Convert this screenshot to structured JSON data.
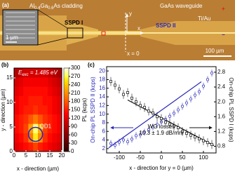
{
  "micrograph": {
    "panel_label": "(a)",
    "cladding": {
      "parts": [
        "Al",
        "0.4",
        "Ga",
        "0.6",
        "As cladding"
      ]
    },
    "waveguide": "GaAs waveguide",
    "sspd1": "SSPD I",
    "sspd2": "SSPD II",
    "metal": "Ti/Au",
    "plus": "+",
    "minus": "−",
    "inset_scale": "1 µm",
    "scale": "100 µm",
    "origin": "x = 0",
    "x_axis": "x",
    "y_axis": "y"
  },
  "chart_data": [
    {
      "type": "heatmap",
      "panel_label": "(b)",
      "annotation": {
        "parts": [
          "E",
          "exc",
          " = 1.485 eV"
        ]
      },
      "marker_label": "QD1",
      "marker_xy": [
        9,
        3.5
      ],
      "xlabel": "x - direction (µm)",
      "ylabel": "y - direction (µm)",
      "xlim": [
        0,
        20
      ],
      "ylim": [
        0,
        17
      ],
      "xticks": [
        0,
        5,
        10,
        15,
        20
      ],
      "yticks": [
        0,
        5,
        10,
        15
      ],
      "cmap": "hot",
      "z": [
        [
          120,
          130,
          140,
          150,
          170,
          150,
          140,
          130,
          120,
          110
        ],
        [
          130,
          140,
          160,
          200,
          260,
          210,
          160,
          140,
          130,
          120
        ],
        [
          140,
          150,
          170,
          220,
          280,
          230,
          170,
          150,
          140,
          130
        ],
        [
          140,
          150,
          160,
          180,
          200,
          180,
          160,
          150,
          140,
          130
        ],
        [
          130,
          140,
          150,
          150,
          160,
          150,
          150,
          140,
          130,
          120
        ],
        [
          130,
          140,
          140,
          150,
          150,
          150,
          140,
          140,
          130,
          120
        ],
        [
          120,
          130,
          140,
          140,
          140,
          140,
          140,
          130,
          120,
          110
        ],
        [
          110,
          120,
          130,
          130,
          130,
          130,
          130,
          120,
          110,
          100
        ],
        [
          90,
          100,
          110,
          110,
          110,
          110,
          110,
          100,
          90,
          80
        ]
      ],
      "colorbar": {
        "label": "PL (kcps)",
        "lim": [
          0,
          300
        ],
        "ticks": [
          0,
          30,
          60,
          90,
          120,
          150,
          180,
          210,
          240,
          270,
          300
        ]
      }
    },
    {
      "type": "scatter",
      "panel_label": "(c)",
      "xlabel": "x - direction for y = 0 (µm)",
      "ylabel": "On-chip PL SSPD II (kcps)",
      "y2label": "On-chip PL SSPD I (kcps)",
      "annotation": [
        "WG losses",
        "10.3 ± 1.9 dB/mm"
      ],
      "xlim": [
        -130,
        130
      ],
      "xticks": [
        -100,
        -50,
        0,
        50,
        100
      ],
      "ylim": [
        1,
        21
      ],
      "yticks": [
        2,
        4,
        6,
        8,
        10,
        12,
        14,
        16,
        18,
        20
      ],
      "y2lim": [
        0.62,
        2.95
      ],
      "y2ticks": [
        0.8,
        1.2,
        1.6,
        {
          "value": 2,
          "label": "2.0"
        },
        2.4,
        2.8
      ],
      "x": [
        -120,
        -110,
        -100,
        -90,
        -80,
        -70,
        -60,
        -50,
        -40,
        -30,
        -20,
        -10,
        0,
        10,
        20,
        30,
        40,
        50,
        60,
        70,
        80,
        90,
        100,
        110,
        120
      ],
      "series": [
        {
          "color": "#2a2ab8",
          "axis": "y",
          "marker": "circle",
          "values": [
            3.2,
            2.8,
            3.5,
            4.0,
            3.6,
            4.2,
            5.0,
            5.2,
            5.8,
            6.4,
            7.0,
            7.6,
            8.2,
            8.8,
            9.5,
            10.2,
            11.0,
            11.8,
            12.6,
            13.5,
            14.4,
            15.2,
            16.5,
            18.0,
            19.5
          ],
          "errors": [
            0.8,
            0.8,
            0.8,
            0.8,
            0.8,
            0.8,
            0.8,
            0.8,
            0.8,
            0.8,
            0.8,
            0.8,
            0.8,
            0.8,
            0.8,
            0.8,
            0.8,
            0.8,
            0.8,
            0.8,
            0.8,
            0.8,
            0.8,
            0.8,
            0.8
          ]
        },
        {
          "color": "#111111",
          "axis": "y2",
          "marker": "square",
          "values": [
            2.55,
            2.45,
            2.35,
            2.2,
            2.25,
            2.1,
            2.0,
            1.9,
            1.85,
            1.75,
            1.7,
            1.6,
            1.55,
            1.45,
            1.4,
            1.35,
            1.3,
            1.2,
            1.15,
            1.1,
            1.05,
            1.0,
            0.95,
            0.9,
            0.85
          ],
          "errors": [
            0.12,
            0.12,
            0.12,
            0.12,
            0.12,
            0.12,
            0.12,
            0.12,
            0.12,
            0.12,
            0.12,
            0.12,
            0.12,
            0.12,
            0.12,
            0.12,
            0.12,
            0.12,
            0.12,
            0.12,
            0.12,
            0.12,
            0.12,
            0.12,
            0.12
          ]
        }
      ],
      "fits": [
        {
          "color": "#2a2ab8",
          "axis": "y",
          "x": [
            -125,
            95
          ],
          "values": [
            2.2,
            17.5
          ]
        },
        {
          "color": "#111111",
          "axis": "y2",
          "x": [
            -80,
            125
          ],
          "values": [
            2.05,
            0.82
          ]
        }
      ]
    }
  ]
}
